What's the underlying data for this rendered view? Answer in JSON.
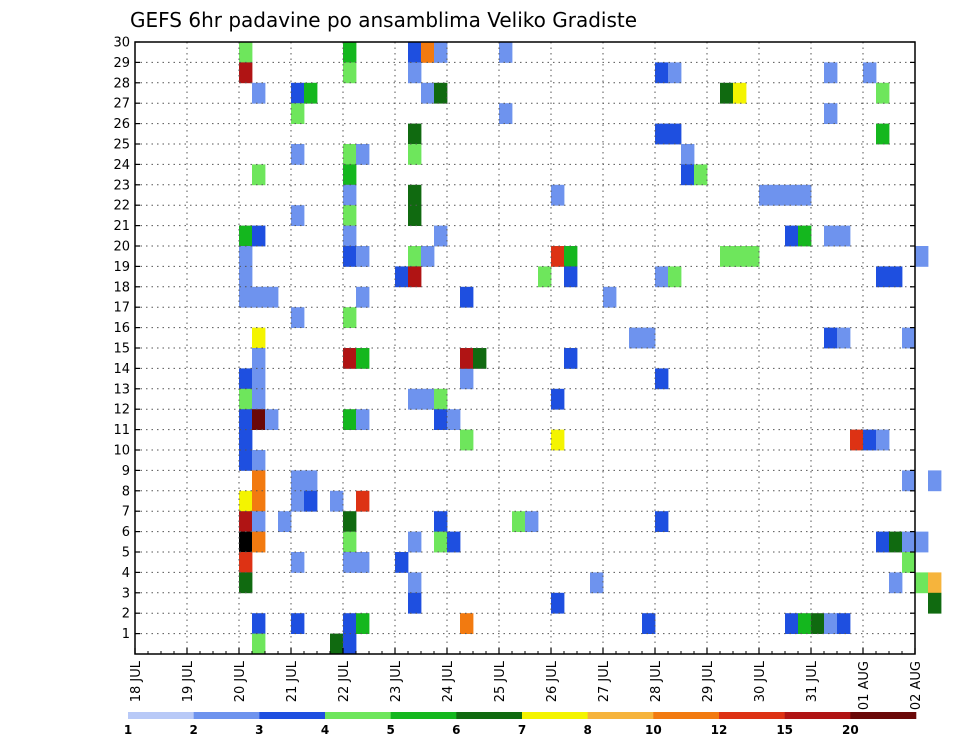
{
  "chart_data": {
    "type": "heatmap",
    "title": "GEFS 6hr padavine po ansamblima Veliko Gradiste",
    "xlabel": "",
    "ylabel": "",
    "x_ticks": [
      "18 JUL",
      "19 JUL",
      "20 JUL",
      "21 JUL",
      "22 JUL",
      "23 JUL",
      "24 JUL",
      "25 JUL",
      "26 JUL",
      "27 JUL",
      "28 JUL",
      "29 JUL",
      "30 JUL",
      "31 JUL",
      "01 AUG",
      "02 AUG"
    ],
    "y_ticks": [
      "1",
      "2",
      "3",
      "4",
      "5",
      "6",
      "7",
      "8",
      "9",
      "10",
      "11",
      "12",
      "13",
      "14",
      "15",
      "16",
      "17",
      "18",
      "19",
      "20",
      "21",
      "22",
      "23",
      "24",
      "25",
      "26",
      "27",
      "28",
      "29",
      "30"
    ],
    "xlim": [
      0,
      60
    ],
    "ylim": [
      0,
      30
    ],
    "grid": true,
    "colorbar": {
      "position": "bottom",
      "labels": [
        "1",
        "2",
        "3",
        "4",
        "5",
        "6",
        "7",
        "8",
        "10",
        "12",
        "15",
        "20"
      ],
      "colors": [
        "#b8c9f7",
        "#6e93ee",
        "#1e4fe0",
        "#6ee65c",
        "#14b71e",
        "#106a10",
        "#f4f400",
        "#f6b43c",
        "#f27a10",
        "#dd3214",
        "#b01414",
        "#6a0808"
      ]
    },
    "cells": [
      [
        8,
        29,
        3
      ],
      [
        8,
        28,
        10
      ],
      [
        8,
        20,
        4
      ],
      [
        8,
        19,
        1
      ],
      [
        8,
        18,
        1
      ],
      [
        8,
        17,
        1
      ],
      [
        8,
        13,
        2
      ],
      [
        8,
        12,
        3
      ],
      [
        8,
        11,
        2
      ],
      [
        8,
        10,
        2
      ],
      [
        8,
        9,
        2
      ],
      [
        8,
        7,
        6
      ],
      [
        8,
        6,
        10
      ],
      [
        8,
        5,
        12
      ],
      [
        8,
        4,
        9
      ],
      [
        8,
        3,
        5
      ],
      [
        9,
        27,
        1
      ],
      [
        9,
        23,
        3
      ],
      [
        9,
        20,
        2
      ],
      [
        9,
        17,
        1
      ],
      [
        9,
        15,
        6
      ],
      [
        9,
        14,
        1
      ],
      [
        9,
        13,
        1
      ],
      [
        9,
        12,
        1
      ],
      [
        9,
        11,
        11
      ],
      [
        9,
        9,
        1
      ],
      [
        9,
        8,
        8
      ],
      [
        9,
        7,
        8
      ],
      [
        9,
        6,
        1
      ],
      [
        9,
        5,
        8
      ],
      [
        9,
        1,
        2
      ],
      [
        9,
        0,
        3
      ],
      [
        10,
        17,
        1
      ],
      [
        10,
        11,
        1
      ],
      [
        11,
        6,
        1
      ],
      [
        12,
        27,
        2
      ],
      [
        12,
        26,
        3
      ],
      [
        12,
        24,
        1
      ],
      [
        12,
        21,
        1
      ],
      [
        12,
        16,
        1
      ],
      [
        12,
        8,
        1
      ],
      [
        12,
        7,
        1
      ],
      [
        12,
        4,
        1
      ],
      [
        12,
        1,
        2
      ],
      [
        13,
        27,
        4
      ],
      [
        13,
        8,
        1
      ],
      [
        13,
        7,
        2
      ],
      [
        15,
        7,
        1
      ],
      [
        15,
        0,
        5
      ],
      [
        16,
        29,
        4
      ],
      [
        16,
        28,
        3
      ],
      [
        16,
        24,
        3
      ],
      [
        16,
        23,
        4
      ],
      [
        16,
        22,
        1
      ],
      [
        16,
        21,
        3
      ],
      [
        16,
        20,
        1
      ],
      [
        16,
        19,
        2
      ],
      [
        16,
        16,
        3
      ],
      [
        16,
        14,
        10
      ],
      [
        16,
        11,
        4
      ],
      [
        16,
        6,
        5
      ],
      [
        16,
        5,
        3
      ],
      [
        16,
        4,
        1
      ],
      [
        16,
        1,
        2
      ],
      [
        16,
        0,
        2
      ],
      [
        17,
        24,
        1
      ],
      [
        17,
        19,
        1
      ],
      [
        17,
        17,
        1
      ],
      [
        17,
        14,
        4
      ],
      [
        17,
        11,
        1
      ],
      [
        17,
        7,
        9
      ],
      [
        17,
        4,
        1
      ],
      [
        17,
        1,
        4
      ],
      [
        20,
        18,
        2
      ],
      [
        20,
        4,
        2
      ],
      [
        21,
        29,
        2
      ],
      [
        21,
        28,
        1
      ],
      [
        21,
        25,
        5
      ],
      [
        21,
        24,
        3
      ],
      [
        21,
        22,
        5
      ],
      [
        21,
        21,
        5
      ],
      [
        21,
        19,
        3
      ],
      [
        21,
        18,
        10
      ],
      [
        21,
        12,
        1
      ],
      [
        21,
        5,
        1
      ],
      [
        21,
        3,
        1
      ],
      [
        21,
        2,
        2
      ],
      [
        22,
        29,
        8
      ],
      [
        22,
        27,
        1
      ],
      [
        22,
        19,
        1
      ],
      [
        22,
        12,
        1
      ],
      [
        23,
        29,
        1
      ],
      [
        23,
        27,
        5
      ],
      [
        23,
        20,
        1
      ],
      [
        23,
        12,
        3
      ],
      [
        23,
        11,
        2
      ],
      [
        23,
        6,
        2
      ],
      [
        23,
        5,
        3
      ],
      [
        24,
        5,
        2
      ],
      [
        24,
        11,
        1
      ],
      [
        25,
        17,
        2
      ],
      [
        25,
        13,
        1
      ],
      [
        25,
        10,
        3
      ],
      [
        25,
        14,
        10
      ],
      [
        25,
        1,
        8
      ],
      [
        26,
        14,
        5
      ],
      [
        28,
        29,
        1
      ],
      [
        28,
        26,
        1
      ],
      [
        29,
        6,
        3
      ],
      [
        30,
        6,
        1
      ],
      [
        31,
        18,
        3
      ],
      [
        32,
        22,
        1
      ],
      [
        32,
        19,
        9
      ],
      [
        32,
        12,
        2
      ],
      [
        32,
        10,
        6
      ],
      [
        32,
        2,
        2
      ],
      [
        33,
        19,
        4
      ],
      [
        33,
        18,
        2
      ],
      [
        33,
        14,
        2
      ],
      [
        35,
        3,
        1
      ],
      [
        36,
        17,
        1
      ],
      [
        38,
        15,
        1
      ],
      [
        39,
        15,
        1
      ],
      [
        39,
        1,
        2
      ],
      [
        40,
        28,
        2
      ],
      [
        40,
        25,
        2
      ],
      [
        40,
        18,
        1
      ],
      [
        40,
        13,
        2
      ],
      [
        40,
        6,
        2
      ],
      [
        41,
        28,
        1
      ],
      [
        41,
        25,
        2
      ],
      [
        41,
        18,
        3
      ],
      [
        42,
        24,
        1
      ],
      [
        42,
        23,
        2
      ],
      [
        43,
        23,
        3
      ],
      [
        45,
        27,
        5
      ],
      [
        45,
        19,
        3
      ],
      [
        46,
        27,
        6
      ],
      [
        46,
        19,
        3
      ],
      [
        47,
        19,
        3
      ],
      [
        48,
        22,
        1
      ],
      [
        49,
        22,
        1
      ],
      [
        50,
        22,
        1
      ],
      [
        50,
        20,
        2
      ],
      [
        50,
        1,
        2
      ],
      [
        51,
        22,
        1
      ],
      [
        51,
        20,
        4
      ],
      [
        51,
        1,
        4
      ],
      [
        52,
        1,
        5
      ],
      [
        53,
        28,
        1
      ],
      [
        53,
        26,
        1
      ],
      [
        53,
        20,
        1
      ],
      [
        53,
        15,
        2
      ],
      [
        53,
        1,
        1
      ],
      [
        54,
        20,
        1
      ],
      [
        54,
        15,
        1
      ],
      [
        54,
        1,
        2
      ],
      [
        55,
        10,
        9
      ],
      [
        56,
        28,
        1
      ],
      [
        56,
        10,
        2
      ],
      [
        57,
        27,
        3
      ],
      [
        57,
        10,
        1
      ],
      [
        57,
        18,
        2
      ],
      [
        57,
        25,
        4
      ],
      [
        57,
        5,
        2
      ],
      [
        58,
        18,
        2
      ],
      [
        58,
        5,
        5
      ],
      [
        58,
        3,
        1
      ],
      [
        59,
        15,
        1
      ],
      [
        59,
        8,
        1
      ],
      [
        59,
        5,
        1
      ],
      [
        59,
        4,
        3
      ],
      [
        60,
        19,
        1
      ],
      [
        60,
        5,
        1
      ],
      [
        60,
        3,
        3
      ],
      [
        61,
        8,
        1
      ],
      [
        61,
        3,
        7
      ],
      [
        61,
        2,
        5
      ]
    ]
  }
}
